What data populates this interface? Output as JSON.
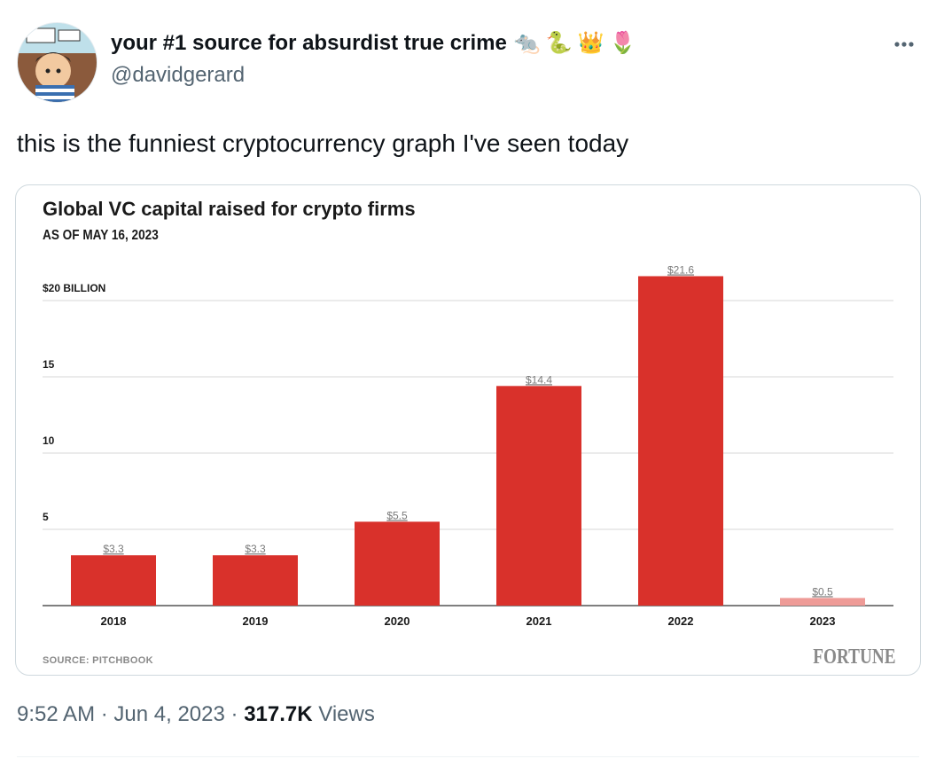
{
  "tweet": {
    "display_name": "your #1 source for absurdist true crime",
    "name_emojis": [
      {
        "icon": "rat-icon",
        "glyph": "🐀"
      },
      {
        "icon": "snake-icon",
        "glyph": "🐍"
      },
      {
        "icon": "crown-icon",
        "glyph": "👑"
      },
      {
        "icon": "tulip-icon",
        "glyph": "🌷"
      }
    ],
    "handle": "@davidgerard",
    "text": "this is the funniest cryptocurrency graph I've seen today",
    "time": "9:52 AM",
    "date": "Jun 4, 2023",
    "views_count": "317.7K",
    "views_label": "Views",
    "separator": "·",
    "more_icon": "more-horizontal-icon"
  },
  "colors": {
    "bar": "#d9312b",
    "bar_partial": "#ee9b97",
    "grid": "#d7d7d7",
    "axis": "#555555"
  },
  "chart": {
    "title": "Global VC capital raised for crypto firms",
    "subtitle": "AS OF MAY 16, 2023",
    "source": "SOURCE: PITCHBOOK",
    "brand": "FORTUNE"
  },
  "chart_data": {
    "type": "bar",
    "title": "Global VC capital raised for crypto firms",
    "subtitle": "AS OF MAY 16, 2023",
    "categories": [
      "2018",
      "2019",
      "2020",
      "2021",
      "2022",
      "2023"
    ],
    "values": [
      3.3,
      3.3,
      5.5,
      14.4,
      21.6,
      0.5
    ],
    "value_labels": [
      "$3.3",
      "$3.3",
      "$5.5",
      "$14.4",
      "$21.6",
      "$0.5"
    ],
    "y_ticks": [
      {
        "value": 20,
        "label": "$20 BILLION"
      },
      {
        "value": 15,
        "label": "15"
      },
      {
        "value": 10,
        "label": "10"
      },
      {
        "value": 5,
        "label": "5"
      }
    ],
    "ylim": [
      0,
      21.6
    ],
    "grid": true,
    "partial_category": "2023",
    "source": "SOURCE: PITCHBOOK"
  }
}
